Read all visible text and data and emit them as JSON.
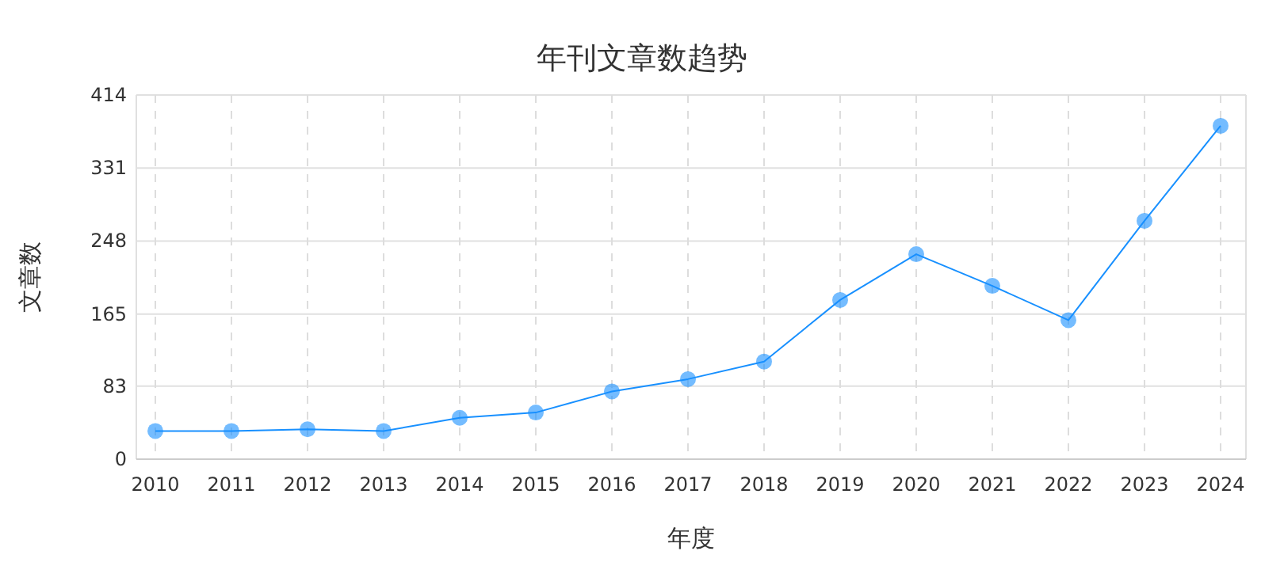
{
  "chart_data": {
    "type": "line",
    "title": "年刊文章数趋势",
    "xlabel": "年度",
    "ylabel": "文章数",
    "categories": [
      "2010",
      "2011",
      "2012",
      "2013",
      "2014",
      "2015",
      "2016",
      "2017",
      "2018",
      "2019",
      "2020",
      "2021",
      "2022",
      "2023",
      "2024"
    ],
    "series": [
      {
        "color": "#1890ff",
        "values": [
          32,
          32,
          34,
          32,
          47,
          53,
          77,
          91,
          111,
          181,
          233,
          197,
          158,
          271,
          379
        ]
      }
    ],
    "ylim": [
      0,
      414
    ],
    "yticks": [
      0,
      83,
      165,
      248,
      331,
      414
    ],
    "grid": true,
    "marker": "circle",
    "line_style": "solid"
  }
}
